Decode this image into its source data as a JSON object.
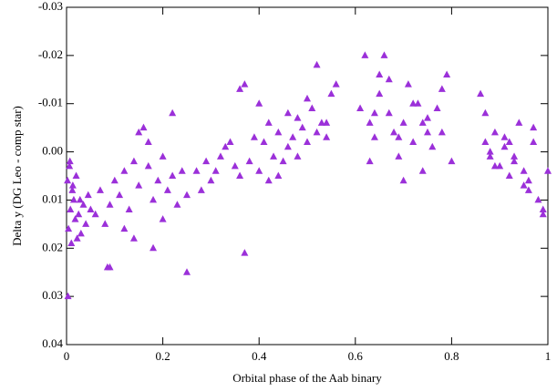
{
  "chart_data": {
    "type": "scatter",
    "xlabel": "Orbital phase of the Aab binary",
    "ylabel": "Delta y (DG Leo - comp star)",
    "xlim": [
      0,
      1
    ],
    "xticks": [
      0,
      0.2,
      0.4,
      0.6,
      0.8,
      1
    ],
    "ylim": [
      0.04,
      -0.03
    ],
    "yticks": [
      -0.03,
      -0.02,
      -0.01,
      {
        "value": 0,
        "label": "0.00"
      },
      0.01,
      0.02,
      0.03,
      0.04
    ],
    "inverted_y": true,
    "series": [
      {
        "name": "DG Leo",
        "color": "#9b30d9",
        "x": [
          0.002,
          0.004,
          0.006,
          0.008,
          0.01,
          0.012,
          0.015,
          0.018,
          0.02,
          0.025,
          0.03,
          0.035,
          0.04,
          0.045,
          0.05,
          0.003,
          0.007,
          0.013,
          0.022,
          0.028,
          0.06,
          0.07,
          0.08,
          0.085,
          0.09,
          0.1,
          0.11,
          0.12,
          0.13,
          0.14,
          0.15,
          0.16,
          0.17,
          0.18,
          0.19,
          0.2,
          0.21,
          0.22,
          0.23,
          0.24,
          0.25,
          0.09,
          0.12,
          0.15,
          0.18,
          0.2,
          0.22,
          0.25,
          0.14,
          0.17,
          0.27,
          0.29,
          0.3,
          0.32,
          0.34,
          0.35,
          0.36,
          0.37,
          0.38,
          0.39,
          0.4,
          0.41,
          0.42,
          0.43,
          0.44,
          0.45,
          0.46,
          0.47,
          0.48,
          0.49,
          0.5,
          0.51,
          0.52,
          0.53,
          0.54,
          0.55,
          0.56,
          0.37,
          0.36,
          0.42,
          0.46,
          0.5,
          0.52,
          0.44,
          0.48,
          0.4,
          0.33,
          0.31,
          0.28,
          0.54,
          0.61,
          0.62,
          0.63,
          0.64,
          0.65,
          0.66,
          0.67,
          0.68,
          0.69,
          0.7,
          0.71,
          0.72,
          0.73,
          0.74,
          0.75,
          0.76,
          0.77,
          0.78,
          0.79,
          0.8,
          0.63,
          0.65,
          0.67,
          0.7,
          0.72,
          0.75,
          0.78,
          0.64,
          0.69,
          0.74,
          0.86,
          0.87,
          0.88,
          0.89,
          0.9,
          0.91,
          0.92,
          0.93,
          0.94,
          0.95,
          0.96,
          0.97,
          0.98,
          0.99,
          1.0,
          0.87,
          0.89,
          0.91,
          0.93,
          0.95,
          0.97,
          0.99,
          0.88,
          0.92,
          0.96
        ],
        "values": [
          0.006,
          0.016,
          0.003,
          0.012,
          0.019,
          0.008,
          0.01,
          0.014,
          0.005,
          0.013,
          0.017,
          0.011,
          0.015,
          0.009,
          0.012,
          0.03,
          0.002,
          0.007,
          0.018,
          0.01,
          0.013,
          0.008,
          0.015,
          0.024,
          0.011,
          0.006,
          0.009,
          0.004,
          0.012,
          0.002,
          0.007,
          -0.005,
          0.003,
          0.01,
          0.006,
          0.001,
          0.008,
          0.005,
          0.011,
          0.004,
          0.009,
          0.024,
          0.016,
          -0.004,
          0.02,
          0.014,
          -0.008,
          0.025,
          0.018,
          -0.002,
          0.004,
          0.002,
          0.006,
          0.001,
          -0.002,
          0.003,
          0.005,
          -0.014,
          0.002,
          -0.003,
          0.004,
          -0.002,
          -0.006,
          0.001,
          -0.004,
          0.002,
          -0.008,
          -0.003,
          0.001,
          -0.005,
          -0.002,
          -0.009,
          -0.018,
          -0.006,
          -0.003,
          -0.012,
          -0.014,
          0.021,
          -0.013,
          0.006,
          -0.001,
          -0.011,
          -0.004,
          0.005,
          -0.007,
          -0.01,
          -0.001,
          0.004,
          0.008,
          -0.006,
          -0.009,
          -0.02,
          -0.006,
          -0.003,
          -0.012,
          -0.02,
          -0.008,
          -0.004,
          0.001,
          -0.006,
          -0.014,
          -0.002,
          -0.01,
          0.004,
          -0.007,
          -0.001,
          -0.009,
          -0.004,
          -0.016,
          0.002,
          0.002,
          -0.016,
          -0.015,
          0.006,
          -0.01,
          -0.004,
          -0.013,
          -0.008,
          -0.003,
          -0.006,
          -0.012,
          -0.002,
          0.001,
          -0.004,
          0.003,
          -0.001,
          0.005,
          0.002,
          -0.006,
          0.004,
          0.006,
          -0.002,
          0.01,
          0.013,
          0.004,
          -0.008,
          0.003,
          -0.003,
          0.001,
          0.007,
          -0.005,
          0.012,
          0,
          -0.002,
          0.008
        ]
      }
    ]
  }
}
